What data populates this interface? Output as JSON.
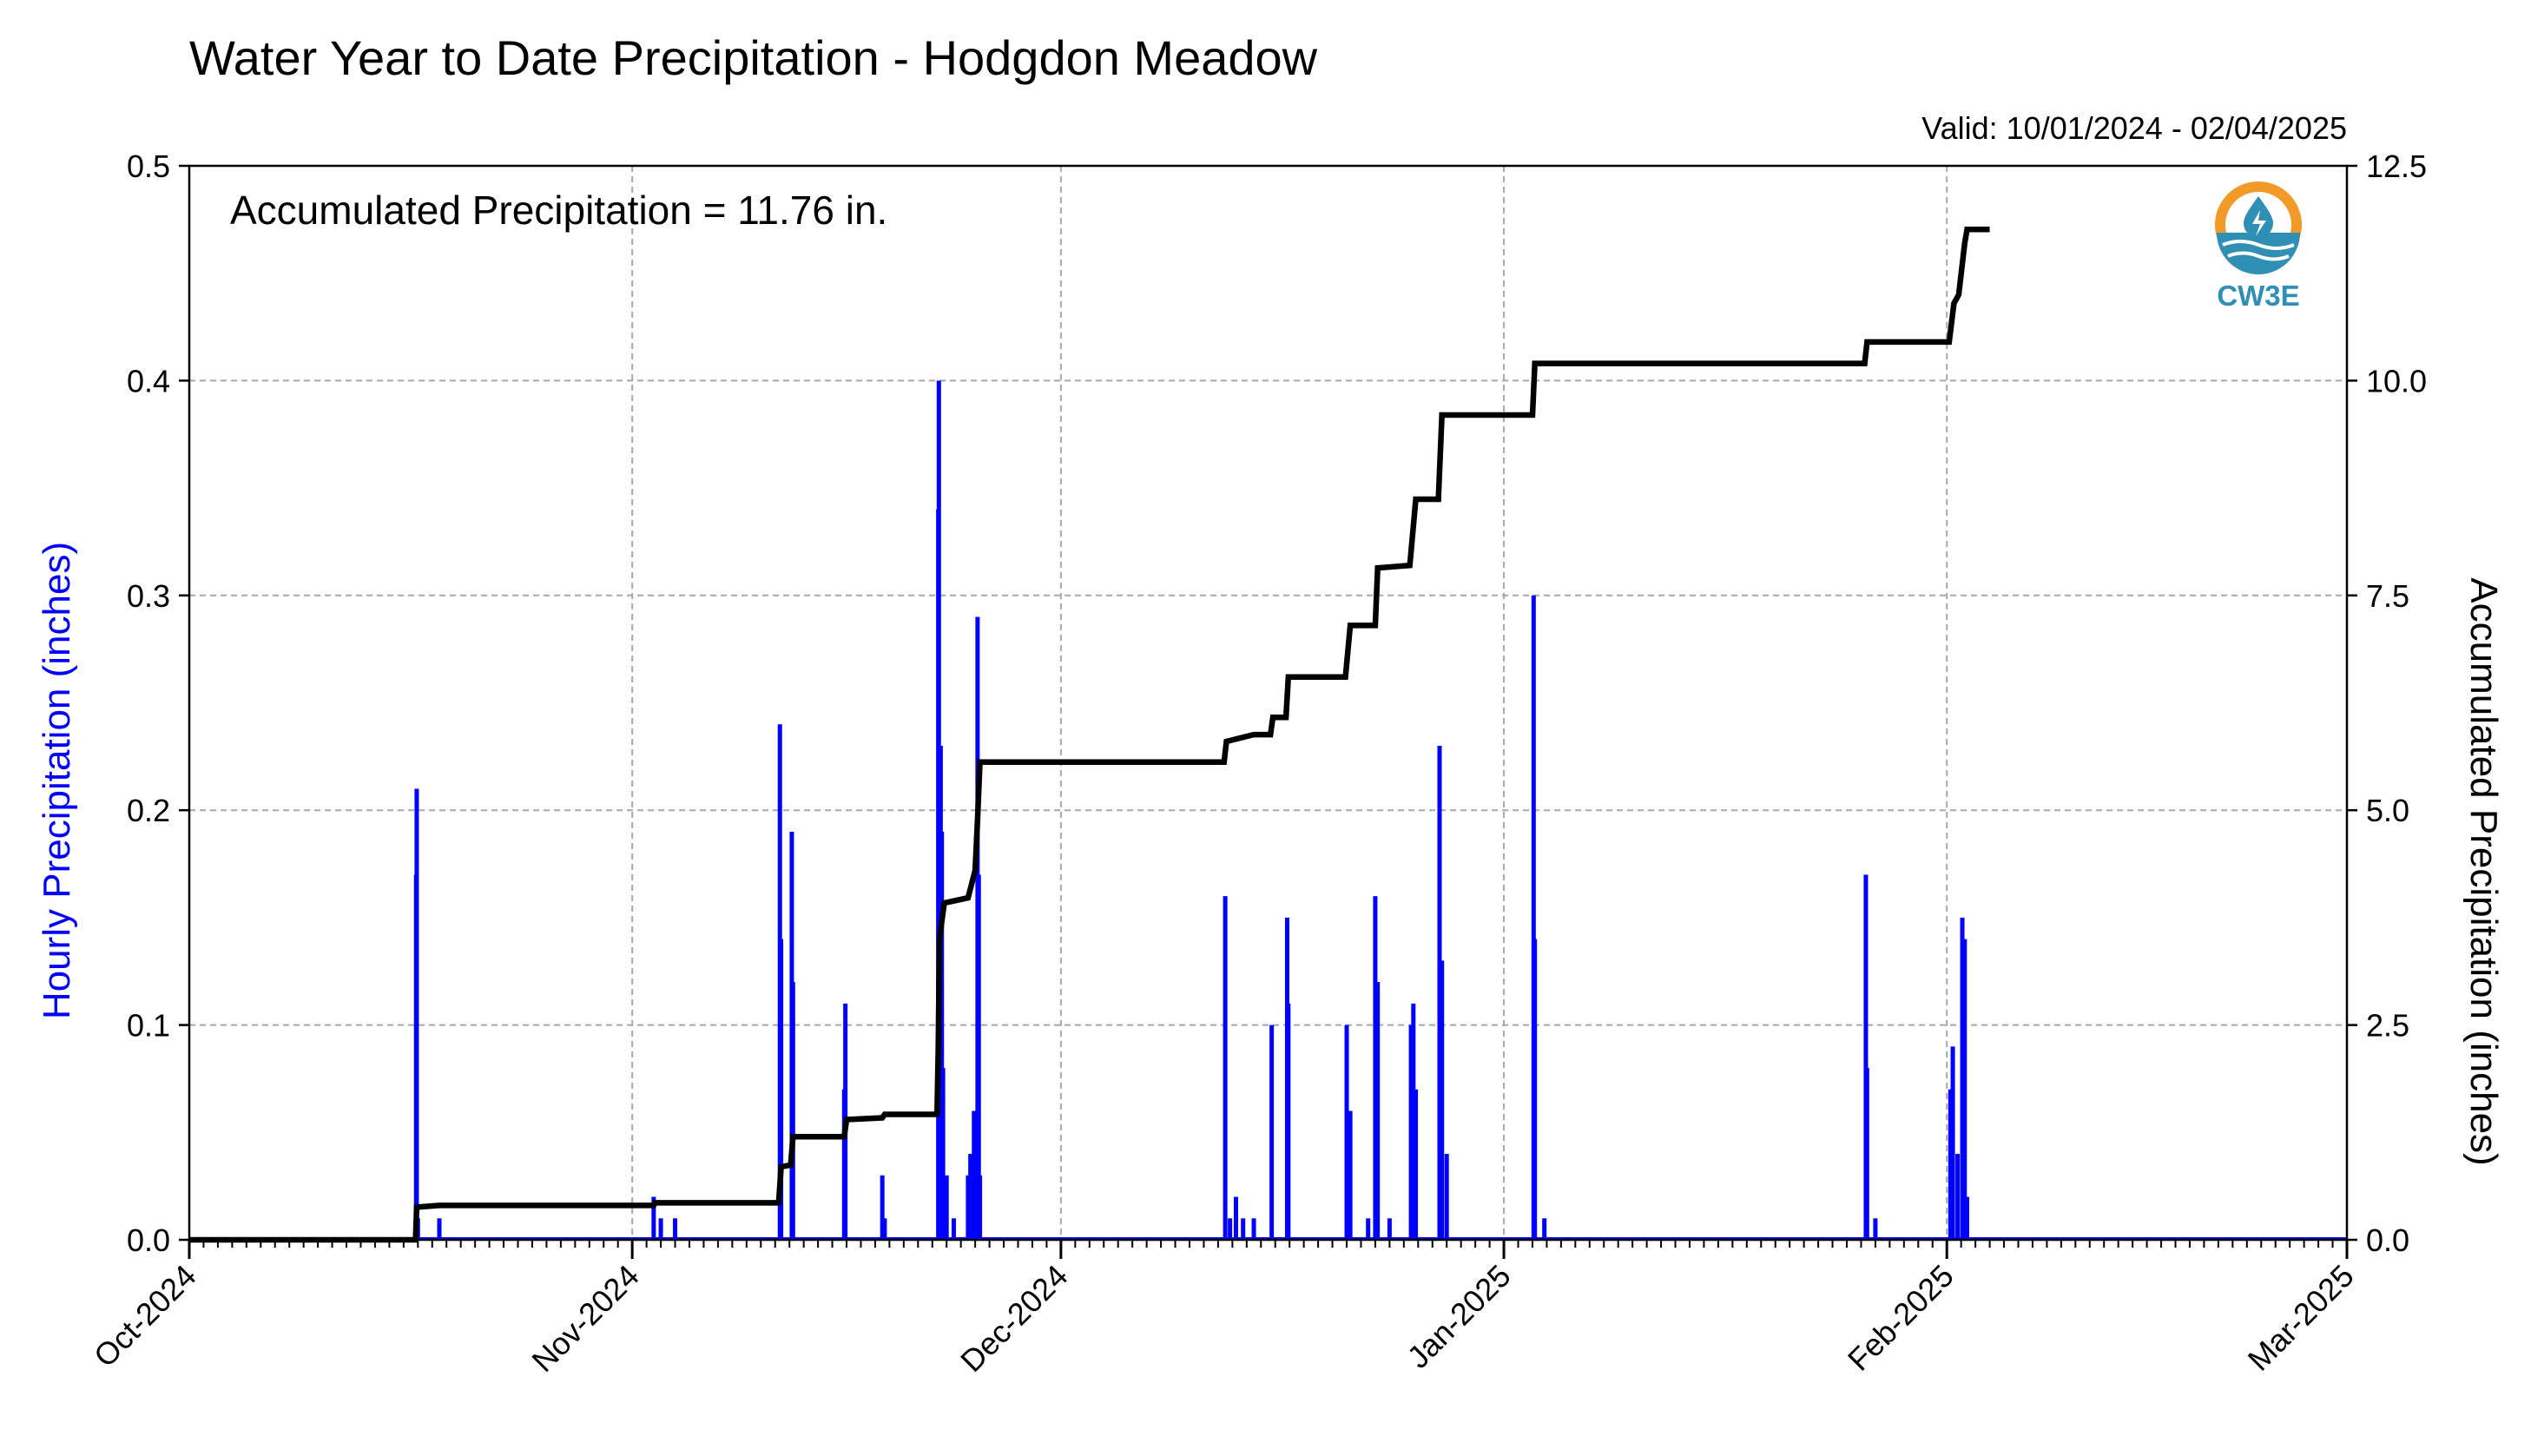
{
  "chart_data": {
    "type": "bar",
    "title": "Water Year to Date Precipitation - Hodgdon Meadow",
    "valid_text": "Valid: 10/01/2024 - 02/04/2025",
    "annotation": "Accumulated Precipitation = 11.76 in.",
    "logo_text": "CW3E",
    "xlabel": "",
    "ylabel": "Hourly Precipitation (inches)",
    "y2label": "Accumulated Precipitation (inches)",
    "xlim": [
      "2024-10-01",
      "2025-03-01"
    ],
    "ylim": [
      0,
      0.5
    ],
    "y2lim": [
      0,
      12.5
    ],
    "grid": true,
    "colors": {
      "hourly": "#0000ff",
      "accumulated": "#000000",
      "grid": "#a8a8a8",
      "logo_orange": "#f29a28",
      "logo_blue": "#2f8fb4"
    },
    "x_ticks": [
      {
        "date": "2024-10-01",
        "label": "Oct-2024"
      },
      {
        "date": "2024-11-01",
        "label": "Nov-2024"
      },
      {
        "date": "2024-12-01",
        "label": "Dec-2024"
      },
      {
        "date": "2025-01-01",
        "label": "Jan-2025"
      },
      {
        "date": "2025-02-01",
        "label": "Feb-2025"
      },
      {
        "date": "2025-03-01",
        "label": "Mar-2025"
      }
    ],
    "y_ticks": [
      "0.0",
      "0.1",
      "0.2",
      "0.3",
      "0.4",
      "0.5"
    ],
    "y2_ticks": [
      "0.0",
      "2.5",
      "5.0",
      "7.5",
      "10.0",
      "12.5"
    ],
    "series": [
      {
        "name": "Hourly Precipitation",
        "type": "bar",
        "points": [
          [
            "2024-10-16T21:00",
            0.17
          ],
          [
            "2024-10-16T22:00",
            0.21
          ],
          [
            "2024-10-17T00:00",
            0.01
          ],
          [
            "2024-10-18T12:00",
            0.01
          ],
          [
            "2024-11-02T12:00",
            0.02
          ],
          [
            "2024-11-03T00:00",
            0.01
          ],
          [
            "2024-11-04T00:00",
            0.01
          ],
          [
            "2024-11-11T08:00",
            0.24
          ],
          [
            "2024-11-11T10:00",
            0.14
          ],
          [
            "2024-11-12T04:00",
            0.19
          ],
          [
            "2024-11-12T06:00",
            0.12
          ],
          [
            "2024-11-15T20:00",
            0.07
          ],
          [
            "2024-11-15T22:00",
            0.11
          ],
          [
            "2024-11-18T12:00",
            0.03
          ],
          [
            "2024-11-18T16:00",
            0.01
          ],
          [
            "2024-11-22T10:00",
            0.34
          ],
          [
            "2024-11-22T11:00",
            0.4
          ],
          [
            "2024-11-22T14:00",
            0.23
          ],
          [
            "2024-11-22T16:00",
            0.19
          ],
          [
            "2024-11-22T18:00",
            0.08
          ],
          [
            "2024-11-23T00:00",
            0.03
          ],
          [
            "2024-11-23T12:00",
            0.01
          ],
          [
            "2024-11-24T12:00",
            0.03
          ],
          [
            "2024-11-24T16:00",
            0.04
          ],
          [
            "2024-11-24T22:00",
            0.06
          ],
          [
            "2024-11-25T04:00",
            0.29
          ],
          [
            "2024-11-25T06:00",
            0.17
          ],
          [
            "2024-11-25T08:00",
            0.03
          ],
          [
            "2024-12-12T12:00",
            0.16
          ],
          [
            "2024-12-12T20:00",
            0.01
          ],
          [
            "2024-12-13T06:00",
            0.02
          ],
          [
            "2024-12-13T18:00",
            0.01
          ],
          [
            "2024-12-14T12:00",
            0.01
          ],
          [
            "2024-12-15T18:00",
            0.1
          ],
          [
            "2024-12-16T20:00",
            0.15
          ],
          [
            "2024-12-16T22:00",
            0.11
          ],
          [
            "2024-12-21T00:00",
            0.1
          ],
          [
            "2024-12-21T06:00",
            0.06
          ],
          [
            "2024-12-22T12:00",
            0.01
          ],
          [
            "2024-12-23T00:00",
            0.16
          ],
          [
            "2024-12-23T04:00",
            0.12
          ],
          [
            "2024-12-24T00:00",
            0.01
          ],
          [
            "2024-12-25T12:00",
            0.1
          ],
          [
            "2024-12-25T16:00",
            0.11
          ],
          [
            "2024-12-25T20:00",
            0.07
          ],
          [
            "2024-12-27T12:00",
            0.23
          ],
          [
            "2024-12-27T16:00",
            0.13
          ],
          [
            "2024-12-28T00:00",
            0.04
          ],
          [
            "2025-01-03T02:00",
            0.3
          ],
          [
            "2025-01-03T04:00",
            0.14
          ],
          [
            "2025-01-03T20:00",
            0.01
          ],
          [
            "2025-01-26T08:00",
            0.17
          ],
          [
            "2025-01-26T10:00",
            0.08
          ],
          [
            "2025-01-27T00:00",
            0.01
          ],
          [
            "2025-02-01T06:00",
            0.07
          ],
          [
            "2025-02-01T10:00",
            0.09
          ],
          [
            "2025-02-01T18:00",
            0.04
          ],
          [
            "2025-02-02T02:00",
            0.15
          ],
          [
            "2025-02-02T06:00",
            0.14
          ],
          [
            "2025-02-02T10:00",
            0.02
          ]
        ]
      },
      {
        "name": "Accumulated Precipitation",
        "type": "step-line",
        "points": [
          [
            "2024-10-01T00:00",
            0.0
          ],
          [
            "2024-10-16T20:00",
            0.0
          ],
          [
            "2024-10-16T22:00",
            0.38
          ],
          [
            "2024-10-18T12:00",
            0.4
          ],
          [
            "2024-11-02T12:00",
            0.4
          ],
          [
            "2024-11-02T14:00",
            0.43
          ],
          [
            "2024-11-11T06:00",
            0.43
          ],
          [
            "2024-11-11T10:00",
            0.85
          ],
          [
            "2024-11-12T02:00",
            0.87
          ],
          [
            "2024-11-12T06:00",
            1.2
          ],
          [
            "2024-11-15T20:00",
            1.2
          ],
          [
            "2024-11-16T00:00",
            1.4
          ],
          [
            "2024-11-18T12:00",
            1.42
          ],
          [
            "2024-11-18T16:00",
            1.46
          ],
          [
            "2024-11-22T08:00",
            1.46
          ],
          [
            "2024-11-22T10:00",
            2.2
          ],
          [
            "2024-11-22T12:00",
            3.5
          ],
          [
            "2024-11-22T20:00",
            3.92
          ],
          [
            "2024-11-24T12:00",
            3.98
          ],
          [
            "2024-11-25T00:00",
            4.3
          ],
          [
            "2024-11-25T04:00",
            4.9
          ],
          [
            "2024-11-25T08:00",
            5.56
          ],
          [
            "2024-12-12T10:00",
            5.56
          ],
          [
            "2024-12-12T14:00",
            5.8
          ],
          [
            "2024-12-14T12:00",
            5.88
          ],
          [
            "2024-12-15T16:00",
            5.88
          ],
          [
            "2024-12-15T20:00",
            6.08
          ],
          [
            "2024-12-16T18:00",
            6.08
          ],
          [
            "2024-12-16T22:00",
            6.55
          ],
          [
            "2024-12-20T22:00",
            6.55
          ],
          [
            "2024-12-21T06:00",
            7.15
          ],
          [
            "2024-12-23T00:00",
            7.15
          ],
          [
            "2024-12-23T04:00",
            7.82
          ],
          [
            "2024-12-25T10:00",
            7.85
          ],
          [
            "2024-12-25T20:00",
            8.62
          ],
          [
            "2024-12-27T10:00",
            8.62
          ],
          [
            "2024-12-27T16:00",
            9.6
          ],
          [
            "2025-01-03T00:00",
            9.6
          ],
          [
            "2025-01-03T04:00",
            10.2
          ],
          [
            "2025-01-26T06:00",
            10.2
          ],
          [
            "2025-01-26T10:00",
            10.45
          ],
          [
            "2025-02-01T04:00",
            10.45
          ],
          [
            "2025-02-01T12:00",
            10.9
          ],
          [
            "2025-02-01T20:00",
            11.0
          ],
          [
            "2025-02-02T06:00",
            11.6
          ],
          [
            "2025-02-02T10:00",
            11.76
          ],
          [
            "2025-02-04T00:00",
            11.76
          ]
        ]
      }
    ]
  }
}
